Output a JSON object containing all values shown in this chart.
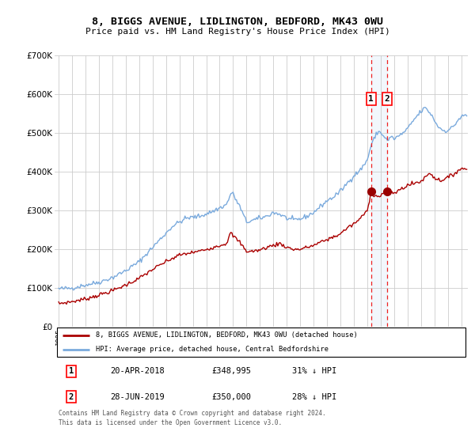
{
  "title": "8, BIGGS AVENUE, LIDLINGTON, BEDFORD, MK43 0WU",
  "subtitle": "Price paid vs. HM Land Registry's House Price Index (HPI)",
  "ylim": [
    0,
    700000
  ],
  "yticks": [
    0,
    100000,
    200000,
    300000,
    400000,
    500000,
    600000,
    700000
  ],
  "ytick_labels": [
    "£0",
    "£100K",
    "£200K",
    "£300K",
    "£400K",
    "£500K",
    "£600K",
    "£700K"
  ],
  "xlim_start": 1994.7,
  "xlim_end": 2025.5,
  "sale1_year": 2018.29,
  "sale2_year": 2019.49,
  "sale1_price": 348995,
  "sale2_price": 350000,
  "property_color": "#aa0000",
  "hpi_color": "#7aaadd",
  "marker_fill": "#990000",
  "vline_color": "#ee2222",
  "span_color": "#ddeeff",
  "legend_property": "8, BIGGS AVENUE, LIDLINGTON, BEDFORD, MK43 0WU (detached house)",
  "legend_hpi": "HPI: Average price, detached house, Central Bedfordshire",
  "table_row1": [
    "1",
    "20-APR-2018",
    "£348,995",
    "31% ↓ HPI"
  ],
  "table_row2": [
    "2",
    "28-JUN-2019",
    "£350,000",
    "28% ↓ HPI"
  ],
  "footnote": "Contains HM Land Registry data © Crown copyright and database right 2024.\nThis data is licensed under the Open Government Licence v3.0.",
  "background_color": "#ffffff",
  "grid_color": "#cccccc"
}
